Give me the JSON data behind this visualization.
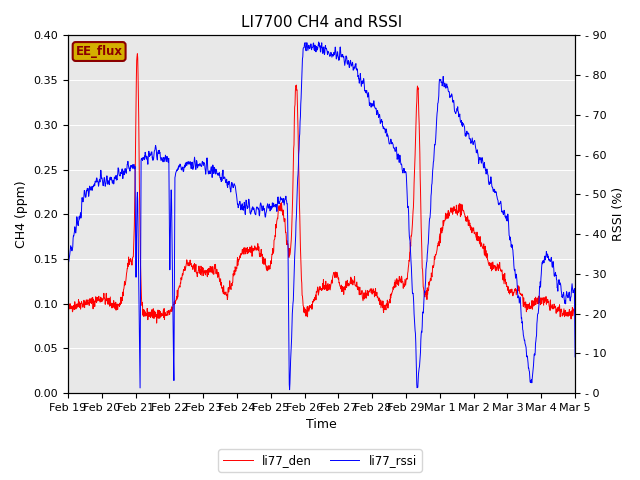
{
  "title": "LI7700 CH4 and RSSI",
  "xlabel": "Time",
  "ylabel_left": "CH4 (ppm)",
  "ylabel_right": "RSSI (%)",
  "ylim_left": [
    0.0,
    0.4
  ],
  "ylim_right": [
    0,
    90
  ],
  "yticks_left": [
    0.0,
    0.05,
    0.1,
    0.15,
    0.2,
    0.25,
    0.3,
    0.35,
    0.4
  ],
  "yticks_right": [
    0,
    10,
    20,
    30,
    40,
    50,
    60,
    70,
    80,
    90
  ],
  "xtick_labels": [
    "Feb 19",
    "Feb 20",
    "Feb 21",
    "Feb 22",
    "Feb 23",
    "Feb 24",
    "Feb 25",
    "Feb 26",
    "Feb 27",
    "Feb 28",
    "Feb 29",
    "Mar 1",
    "Mar 2",
    "Mar 3",
    "Mar 4",
    "Mar 5"
  ],
  "background_color": "#e8e8e8",
  "legend_labels": [
    "li77_den",
    "li77_rssi"
  ],
  "annotation_text": "EE_flux",
  "annotation_bg": "#d4b000",
  "annotation_edge": "#8B0000",
  "annotation_text_color": "#8B0000",
  "line_color_ch4": "red",
  "line_color_rssi": "blue",
  "title_fontsize": 11,
  "axis_label_fontsize": 9,
  "tick_fontsize": 8
}
